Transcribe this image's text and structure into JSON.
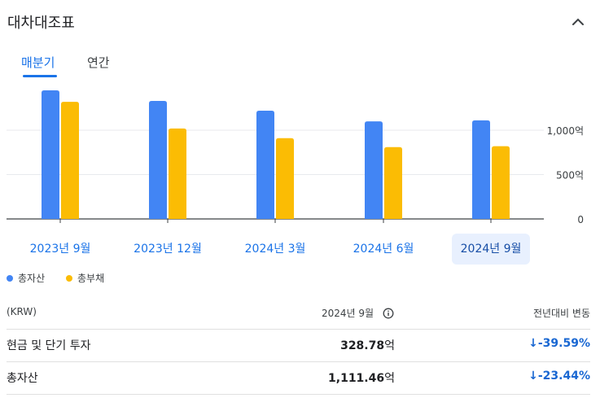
{
  "section": {
    "title": "대차대조표"
  },
  "tabs": [
    {
      "label": "매분기",
      "active": true
    },
    {
      "label": "연간",
      "active": false
    }
  ],
  "colors": {
    "accent": "#1a73e8",
    "total_assets": "#4285f4",
    "total_liabilities": "#fbbc04",
    "negative_change": "#1967d2"
  },
  "icons": {
    "collapse": "chevron-up-icon",
    "info": "info-icon",
    "down_arrow": "arrow-down-icon"
  },
  "chart_data": {
    "type": "bar",
    "categories": [
      "2023년 9월",
      "2023년 12월",
      "2024년 3월",
      "2024년 6월",
      "2024년 9월"
    ],
    "selected_category": "2024년 9월",
    "series": [
      {
        "name": "총자산",
        "values": [
          1450,
          1330,
          1220,
          1100,
          1111.46
        ]
      },
      {
        "name": "총부채",
        "values": [
          1320,
          1020,
          910,
          810,
          820
        ]
      }
    ],
    "yticks": [
      "0",
      "500억",
      "1,000억"
    ],
    "ytick_values": [
      0,
      500,
      1000
    ],
    "ylim": [
      0,
      1500
    ],
    "grid": true,
    "legend_position": "bottom-left"
  },
  "table": {
    "header": {
      "label": "(KRW)",
      "period": "2024년 9월",
      "change": "전년대비 변동"
    },
    "rows": [
      {
        "label": "현금 및 단기 투자",
        "value": "328.78",
        "unit": "억",
        "change": "↓-39.59%"
      },
      {
        "label": "총자산",
        "value": "1,111.46",
        "unit": "억",
        "change": "↓-23.44%"
      }
    ]
  }
}
